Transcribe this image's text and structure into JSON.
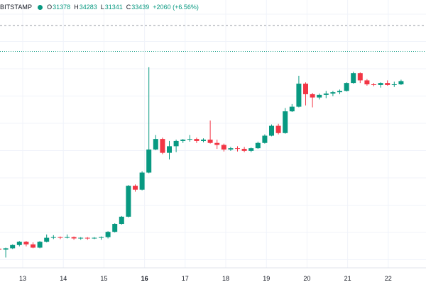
{
  "legend": {
    "symbol": "BITSTAMP",
    "open_label": "O",
    "open": "31378",
    "high_label": "H",
    "high": "34283",
    "low_label": "L",
    "low": "31341",
    "close_label": "C",
    "close": "33439",
    "change": "+2060 (+6.56%)"
  },
  "colors": {
    "up": "#089981",
    "down": "#f23645",
    "grid": "#f0f3fa",
    "text": "#131722"
  },
  "chart_data": {
    "type": "candlestick",
    "x_ticks": [
      {
        "label": "13",
        "bold": false
      },
      {
        "label": "14",
        "bold": false
      },
      {
        "label": "15",
        "bold": false
      },
      {
        "label": "16",
        "bold": true
      },
      {
        "label": "17",
        "bold": false
      },
      {
        "label": "18",
        "bold": false
      },
      {
        "label": "19",
        "bold": false
      },
      {
        "label": "20",
        "bold": false
      },
      {
        "label": "21",
        "bold": false
      },
      {
        "label": "22",
        "bold": false
      }
    ],
    "candles": [
      [
        30895,
        30900,
        30860,
        30880
      ],
      [
        30880,
        30910,
        30760,
        30900
      ],
      [
        30900,
        30960,
        30890,
        30950
      ],
      [
        30950,
        31010,
        30930,
        31000
      ],
      [
        31000,
        31010,
        30930,
        30960
      ],
      [
        30960,
        30990,
        30900,
        30910
      ],
      [
        30910,
        31010,
        30900,
        31000
      ],
      [
        31000,
        31110,
        30990,
        31060
      ],
      [
        31060,
        31100,
        31040,
        31070
      ],
      [
        31070,
        31080,
        31040,
        31060
      ],
      [
        31060,
        31110,
        31050,
        31070
      ],
      [
        31070,
        31080,
        31030,
        31050
      ],
      [
        31050,
        31070,
        31030,
        31060
      ],
      [
        31060,
        31070,
        31030,
        31050
      ],
      [
        31050,
        31070,
        31040,
        31060
      ],
      [
        31060,
        31080,
        31030,
        31070
      ],
      [
        31070,
        31160,
        31050,
        31150
      ],
      [
        31150,
        31280,
        31140,
        31270
      ],
      [
        31270,
        31390,
        31260,
        31380
      ],
      [
        31380,
        31860,
        31370,
        31850
      ],
      [
        31850,
        31870,
        31760,
        31790
      ],
      [
        31790,
        32070,
        31780,
        32050
      ],
      [
        32050,
        33650,
        32040,
        32400
      ],
      [
        32400,
        32620,
        32390,
        32560
      ],
      [
        32560,
        32580,
        32330,
        32350
      ],
      [
        32350,
        32530,
        32250,
        32450
      ],
      [
        32450,
        32550,
        32360,
        32530
      ],
      [
        32530,
        32560,
        32500,
        32550
      ],
      [
        32550,
        32620,
        32520,
        32560
      ],
      [
        32560,
        32580,
        32500,
        32530
      ],
      [
        32530,
        32570,
        32510,
        32550
      ],
      [
        32550,
        32840,
        32490,
        32500
      ],
      [
        32500,
        32550,
        32410,
        32470
      ],
      [
        32470,
        32490,
        32370,
        32400
      ],
      [
        32400,
        32440,
        32380,
        32420
      ],
      [
        32420,
        32450,
        32370,
        32410
      ],
      [
        32410,
        32440,
        32360,
        32380
      ],
      [
        32380,
        32430,
        32360,
        32420
      ],
      [
        32420,
        32520,
        32410,
        32500
      ],
      [
        32500,
        32630,
        32490,
        32610
      ],
      [
        32610,
        32780,
        32600,
        32760
      ],
      [
        32760,
        32790,
        32630,
        32650
      ],
      [
        32650,
        33030,
        32640,
        32980
      ],
      [
        32980,
        33090,
        32970,
        33050
      ],
      [
        33050,
        33520,
        33040,
        33400
      ],
      [
        33400,
        33420,
        33070,
        33240
      ],
      [
        33240,
        33260,
        33040,
        33190
      ],
      [
        33190,
        33250,
        33160,
        33230
      ],
      [
        33230,
        33290,
        33180,
        33250
      ],
      [
        33250,
        33290,
        33210,
        33270
      ],
      [
        33270,
        33310,
        33240,
        33290
      ],
      [
        33290,
        33420,
        33280,
        33410
      ],
      [
        33410,
        33580,
        33400,
        33560
      ],
      [
        33560,
        33570,
        33410,
        33450
      ],
      [
        33450,
        33470,
        33370,
        33390
      ],
      [
        33390,
        33410,
        33360,
        33380
      ],
      [
        33380,
        33420,
        33340,
        33410
      ],
      [
        33410,
        33450,
        33370,
        33380
      ],
      [
        33380,
        33430,
        33350,
        33390
      ],
      [
        33390,
        33460,
        33380,
        33439
      ]
    ],
    "ylim": [
      30700,
      34283
    ],
    "ref_lines": [
      34283,
      33890
    ],
    "grid": true
  }
}
